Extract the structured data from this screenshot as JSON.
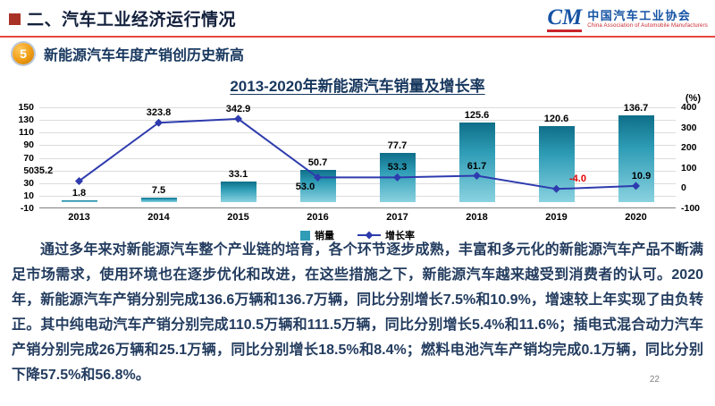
{
  "header": {
    "section_title": "二、汽车工业经济运行情况",
    "logo": {
      "mark": "CM",
      "name_cn": "中国汽车工业协会",
      "name_en": "China Association of Automobile Manufacturers"
    }
  },
  "subtitle": {
    "number": "5",
    "text": "新能源汽车年度产销创历史新高"
  },
  "chart_data": {
    "type": "bar",
    "title": "2013-2020年新能源汽车销量及增长率",
    "right_axis_unit": "(%)",
    "categories": [
      "2013",
      "2014",
      "2015",
      "2016",
      "2017",
      "2018",
      "2019",
      "2020"
    ],
    "series": [
      {
        "name": "销量",
        "type": "bar",
        "axis": "left",
        "color": "#2f9db6",
        "values": [
          1.8,
          7.5,
          33.1,
          50.7,
          77.7,
          125.6,
          120.6,
          136.7
        ]
      },
      {
        "name": "增长率",
        "type": "line",
        "axis": "right",
        "color": "#2e3bae",
        "values": [
          35.2,
          323.8,
          342.9,
          53.0,
          53.3,
          61.7,
          -4.0,
          10.9
        ]
      }
    ],
    "left_axis": {
      "min": -10,
      "max": 150,
      "ticks": [
        150,
        130,
        110,
        90,
        70,
        50,
        30,
        10,
        -10
      ]
    },
    "right_axis": {
      "min": -100,
      "max": 400,
      "ticks": [
        400,
        300,
        200,
        100,
        0,
        -100
      ]
    },
    "legend_position": "bottom",
    "grid": true,
    "negative_label_color": "#e00000"
  },
  "body": {
    "paragraph": "通过多年来对新能源汽车整个产业链的培育，各个环节逐步成熟，丰富和多元化的新能源汽车产品不断满足市场需求，使用环境也在逐步优化和改进，在这些措施之下，新能源汽车越来越受到消费者的认可。2020年，新能源汽车产销分别完成136.6万辆和136.7万辆，同比分别增长7.5%和10.9%，增速较上年实现了由负转正。其中纯电动汽车产销分别完成110.5万辆和111.5万辆，同比分别增长5.4%和11.6%；插电式混合动力汽车产销分别完成26万辆和25.1万辆，同比分别增长18.5%和8.4%；燃料电池汽车产销均完成0.1万辆，同比分别下降57.5%和56.8%。"
  },
  "page_number": "22"
}
